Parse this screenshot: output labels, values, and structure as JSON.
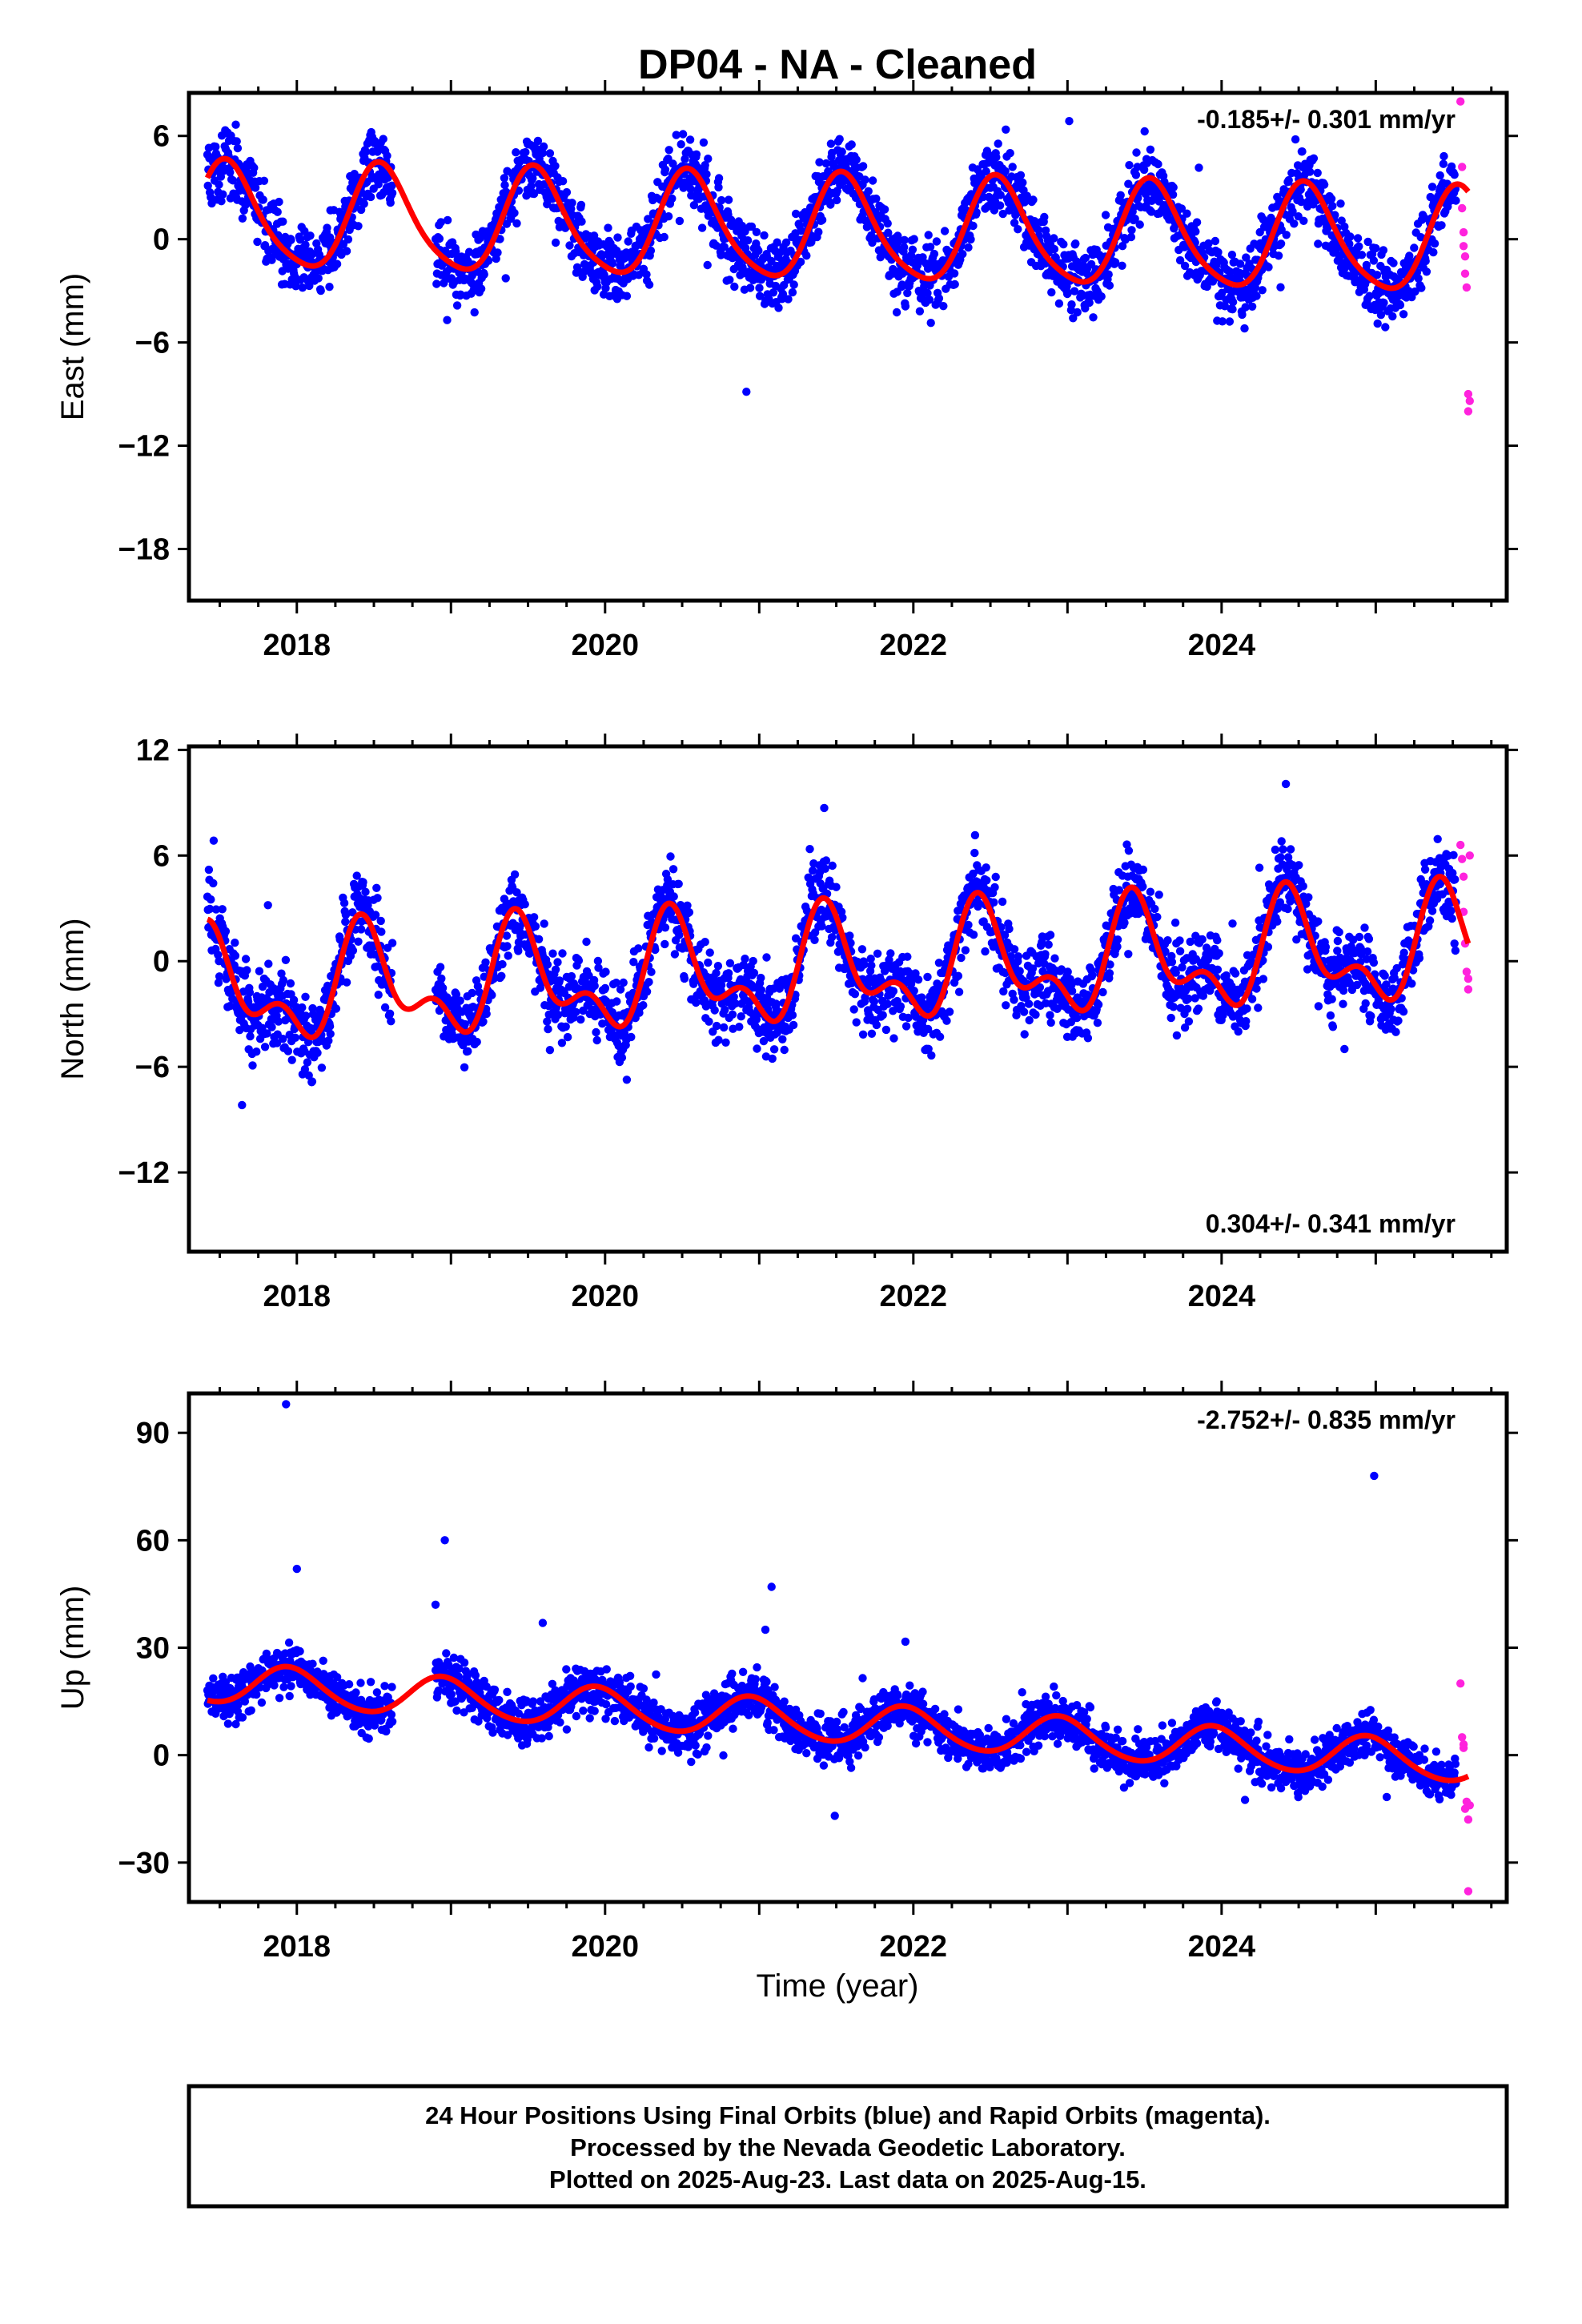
{
  "title": "DP04  - NA - Cleaned",
  "xlabel": "Time (year)",
  "colors": {
    "final_orbits": "#0000ff",
    "rapid_orbits": "#ff22dd",
    "model": "#ff0000",
    "frame": "#000000"
  },
  "chart_data": [
    {
      "type": "scatter",
      "panel": "east",
      "ylabel": "East (mm)",
      "rate_label": "-0.185+/- 0.301 mm/yr",
      "rate_placement": "top-right",
      "xlim": [
        2017.3,
        2025.85
      ],
      "ylim": [
        -21,
        8.5
      ],
      "yticks": [
        6,
        0,
        -6,
        -12,
        -18
      ],
      "ytick_labels": [
        "6",
        "0",
        "−6",
        "−12",
        "−18"
      ],
      "xticks": [
        2018,
        2020,
        2022,
        2024
      ],
      "xtick_labels": [
        "2018",
        "2020",
        "2022",
        "2024"
      ],
      "series": [
        {
          "role": "final_orbits",
          "start": 2017.42,
          "end": 2025.52,
          "offset": 0.5,
          "trend": -0.185,
          "annual": 3.0,
          "semiannual": 0.4,
          "phase": 0.55,
          "noise": 1.4
        },
        {
          "role": "rapid_orbits",
          "x": [
            2025.55,
            2025.56,
            2025.56,
            2025.57,
            2025.57,
            2025.58,
            2025.58,
            2025.59,
            2025.6,
            2025.6,
            2025.61
          ],
          "y": [
            8.0,
            4.2,
            1.8,
            0.4,
            -0.4,
            -1.0,
            -2.0,
            -2.8,
            -9.0,
            -10.0,
            -9.4
          ]
        }
      ],
      "model": {
        "offset": 0.5,
        "trend": -0.185,
        "annual": 3.0,
        "semiannual": 0.5,
        "phase": 0.55
      }
    },
    {
      "type": "scatter",
      "panel": "north",
      "ylabel": "North (mm)",
      "rate_label": "0.304+/- 0.341 mm/yr",
      "rate_placement": "bottom-right",
      "xlim": [
        2017.3,
        2025.85
      ],
      "ylim": [
        -16.5,
        12.2
      ],
      "yticks": [
        12,
        6,
        0,
        -6,
        -12
      ],
      "ytick_labels": [
        "12",
        "6",
        "0",
        "−6",
        "−12"
      ],
      "xticks": [
        2018,
        2020,
        2022,
        2024
      ],
      "xtick_labels": [
        "2018",
        "2020",
        "2022",
        "2024"
      ],
      "series": [
        {
          "role": "final_orbits",
          "start": 2017.42,
          "end": 2025.52,
          "offset": -0.5,
          "trend": 0.304,
          "annual": 2.6,
          "semiannual": 1.6,
          "phase": 0.45,
          "noise": 1.6
        },
        {
          "role": "rapid_orbits",
          "x": [
            2025.55,
            2025.56,
            2025.57,
            2025.57,
            2025.58,
            2025.59,
            2025.6,
            2025.6,
            2025.61
          ],
          "y": [
            6.6,
            5.8,
            4.8,
            2.8,
            1.0,
            -0.6,
            -1.0,
            -1.6,
            6.0
          ]
        }
      ],
      "model": {
        "offset": -0.5,
        "trend": 0.304,
        "annual": 2.6,
        "semiannual": 1.6,
        "phase": 0.45
      }
    },
    {
      "type": "scatter",
      "panel": "up",
      "ylabel": "Up (mm)",
      "rate_label": "-2.752+/- 0.835 mm/yr",
      "rate_placement": "top-right",
      "xlim": [
        2017.3,
        2025.85
      ],
      "ylim": [
        -41,
        101
      ],
      "yticks": [
        90,
        60,
        30,
        0,
        -30
      ],
      "ytick_labels": [
        "90",
        "60",
        "30",
        "0",
        "−30"
      ],
      "xticks": [
        2018,
        2020,
        2022,
        2024
      ],
      "xtick_labels": [
        "2018",
        "2020",
        "2022",
        "2024"
      ],
      "series": [
        {
          "role": "final_orbits",
          "start": 2017.42,
          "end": 2025.52,
          "offset": 9.0,
          "trend": -2.752,
          "annual": 5.5,
          "semiannual": 0.5,
          "phase": 0.95,
          "noise": 4.5
        },
        {
          "role": "final_orbits_outliers",
          "x": [
            2017.93,
            2018.0,
            2017.98,
            2018.02,
            2018.9,
            2018.92,
            2018.96,
            2019.0,
            2021.04,
            2021.08,
            2021.1,
            2024.99
          ],
          "y": [
            98,
            52,
            29,
            29,
            42,
            26,
            60,
            19,
            35,
            47,
            19,
            78
          ]
        },
        {
          "role": "rapid_orbits",
          "x": [
            2025.55,
            2025.56,
            2025.57,
            2025.57,
            2025.58,
            2025.59,
            2025.6,
            2025.6,
            2025.61
          ],
          "y": [
            20,
            5,
            2,
            3,
            -15,
            -13,
            -18,
            -38,
            -14
          ]
        }
      ],
      "model": {
        "offset": 9.0,
        "trend": -2.752,
        "annual": 5.5,
        "semiannual": 0.5,
        "phase": 0.95
      }
    }
  ],
  "footer": {
    "line1": "24 Hour Positions Using Final Orbits (blue) and Rapid Orbits (magenta).",
    "line2": "Processed by the Nevada Geodetic Laboratory.",
    "line3": "Plotted on 2025-Aug-23. Last data on 2025-Aug-15."
  }
}
